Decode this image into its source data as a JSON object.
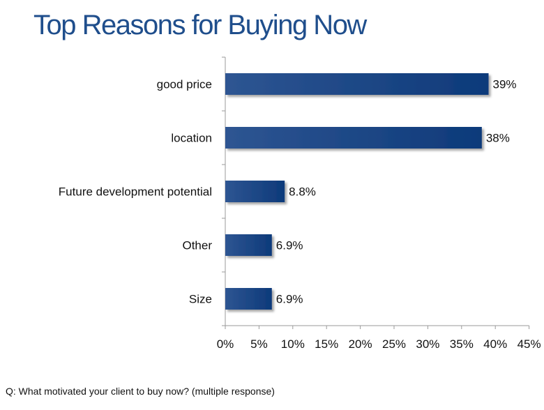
{
  "title": "Top Reasons for Buying Now",
  "footnote": "Q: What motivated your client to buy now? (multiple response)",
  "colors": {
    "title": "#1f4e8c",
    "bar_dark": "#0d3a7a",
    "bar_light": "#2e5592",
    "axis": "#9a9a9a"
  },
  "chart_data": {
    "type": "bar",
    "orientation": "horizontal",
    "title": "Top Reasons for Buying Now",
    "xlabel": "",
    "ylabel": "",
    "categories": [
      "good price",
      "location",
      "Future development potential",
      "Other",
      "Size"
    ],
    "values": [
      39,
      38,
      8.8,
      6.9,
      6.9
    ],
    "value_labels": [
      "39%",
      "38%",
      "8.8%",
      "6.9%",
      "6.9%"
    ],
    "xlim": [
      0,
      45
    ],
    "xticks": [
      0,
      5,
      10,
      15,
      20,
      25,
      30,
      35,
      40,
      45
    ],
    "xtick_labels": [
      "0%",
      "5%",
      "10%",
      "15%",
      "20%",
      "25%",
      "30%",
      "35%",
      "40%",
      "45%"
    ],
    "grid": false,
    "legend": "none"
  }
}
